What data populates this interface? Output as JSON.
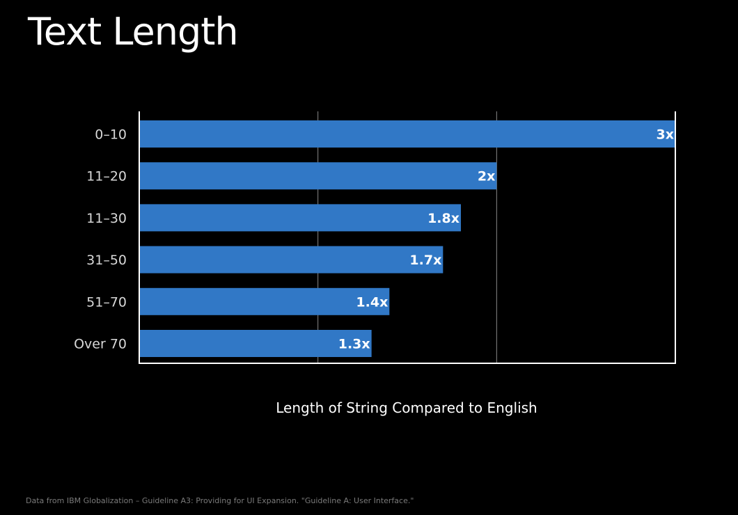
{
  "slide": {
    "title": "Text Length",
    "footnote": "Data from IBM Globalization – Guideline A3: Providing for UI Expansion. \"Guideline A: User Interface.\""
  },
  "colors": {
    "background": "#000000",
    "bar": "#3178c6",
    "text": "#ffffff",
    "category_text": "#d8d8d8",
    "grid": "#8a8a8a",
    "footnote": "#7a7a7a"
  },
  "chart_data": {
    "type": "bar",
    "orientation": "horizontal",
    "title": "Text Length",
    "xlabel": "Length of String Compared to English",
    "ylabel": "",
    "categories": [
      "0–10",
      "11–20",
      "11–30",
      "31–50",
      "51–70",
      "Over 70"
    ],
    "values": [
      3,
      2,
      1.8,
      1.7,
      1.4,
      1.3
    ],
    "data_labels": [
      "3x",
      "2x",
      "1.8x",
      "1.7x",
      "1.4x",
      "1.3x"
    ],
    "xlim": [
      0,
      3
    ],
    "grid": true,
    "legend": "none"
  }
}
